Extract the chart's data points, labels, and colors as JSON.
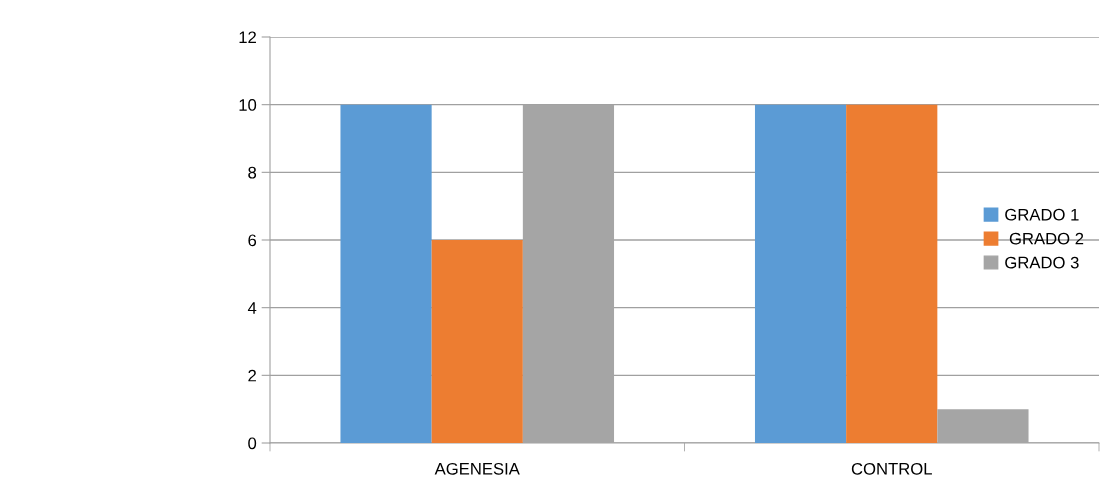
{
  "chart_data": {
    "type": "bar",
    "categories": [
      "AGENESIA",
      "CONTROL"
    ],
    "series": [
      {
        "name": "GRADO 1",
        "color": "#5b9bd5",
        "values": [
          10,
          10
        ]
      },
      {
        "name": " GRADO 2",
        "color": "#ed7d31",
        "values": [
          6,
          10
        ]
      },
      {
        "name": "GRADO 3",
        "color": "#a5a5a5",
        "values": [
          10,
          1
        ]
      }
    ],
    "ylim": [
      0,
      12
    ],
    "yticks": [
      0,
      2,
      4,
      6,
      8,
      10,
      12
    ],
    "grid": "y",
    "legend": "right"
  }
}
